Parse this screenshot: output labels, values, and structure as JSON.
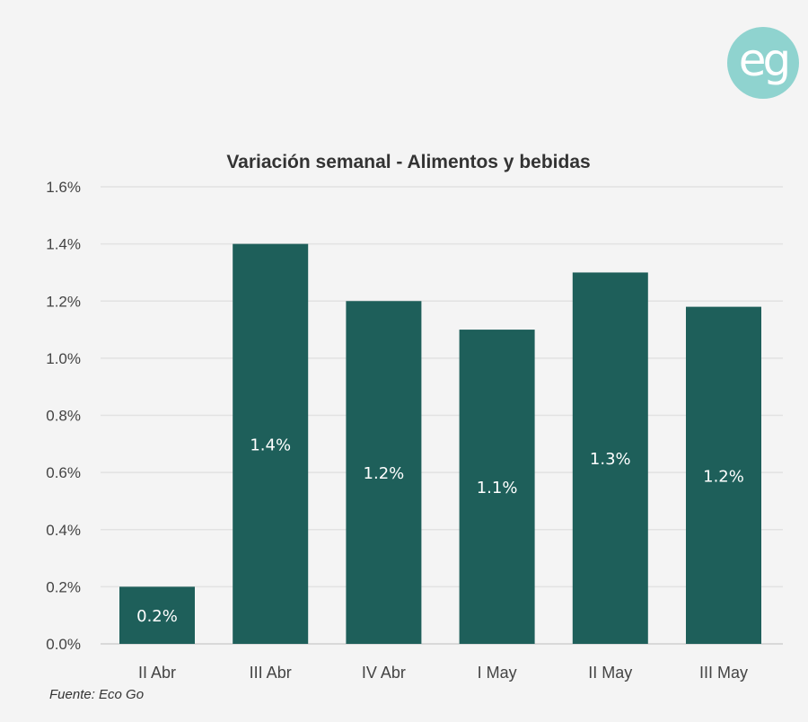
{
  "logo_text": "eg",
  "chart_data": {
    "type": "bar",
    "title": "Variación semanal - Alimentos y bebidas",
    "categories": [
      "II Abr",
      "III Abr",
      "IV Abr",
      "I May",
      "II May",
      "III May"
    ],
    "values": [
      0.2,
      1.4,
      1.2,
      1.1,
      1.3,
      1.18
    ],
    "data_labels": [
      "0.2%",
      "1.4%",
      "1.2%",
      "1.1%",
      "1.3%",
      "1.2%"
    ],
    "xlabel": "",
    "ylabel": "",
    "ylim": [
      0,
      1.6
    ],
    "yticks": [
      0,
      0.2,
      0.4,
      0.6,
      0.8,
      1.0,
      1.2,
      1.4,
      1.6
    ],
    "ytick_labels": [
      "0.0%",
      "0.2%",
      "0.4%",
      "0.6%",
      "0.8%",
      "1.0%",
      "1.2%",
      "1.4%",
      "1.6%"
    ],
    "grid": true,
    "bar_color": "#1e5f5a",
    "source": "Fuente: Eco Go"
  }
}
